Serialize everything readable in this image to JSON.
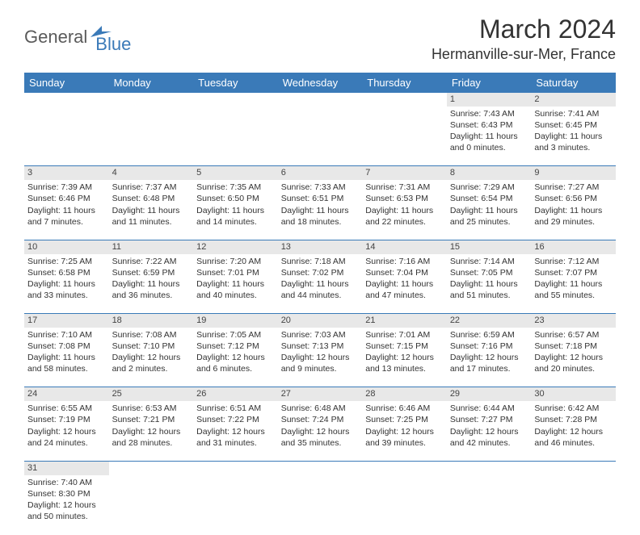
{
  "logo": {
    "part1": "General",
    "part2": "Blue"
  },
  "title": "March 2024",
  "location": "Hermanville-sur-Mer, France",
  "colors": {
    "header_bg": "#3a7ab8",
    "daynum_bg": "#e8e8e8",
    "text": "#333333",
    "sep": "#3a7ab8"
  },
  "typography": {
    "title_fontsize": 32,
    "location_fontsize": 18,
    "dayheader_fontsize": 13,
    "cell_fontsize": 10.5
  },
  "day_headers": [
    "Sunday",
    "Monday",
    "Tuesday",
    "Wednesday",
    "Thursday",
    "Friday",
    "Saturday"
  ],
  "weeks": [
    [
      null,
      null,
      null,
      null,
      null,
      {
        "n": "1",
        "sr": "Sunrise: 7:43 AM",
        "ss": "Sunset: 6:43 PM",
        "d1": "Daylight: 11 hours",
        "d2": "and 0 minutes."
      },
      {
        "n": "2",
        "sr": "Sunrise: 7:41 AM",
        "ss": "Sunset: 6:45 PM",
        "d1": "Daylight: 11 hours",
        "d2": "and 3 minutes."
      }
    ],
    [
      {
        "n": "3",
        "sr": "Sunrise: 7:39 AM",
        "ss": "Sunset: 6:46 PM",
        "d1": "Daylight: 11 hours",
        "d2": "and 7 minutes."
      },
      {
        "n": "4",
        "sr": "Sunrise: 7:37 AM",
        "ss": "Sunset: 6:48 PM",
        "d1": "Daylight: 11 hours",
        "d2": "and 11 minutes."
      },
      {
        "n": "5",
        "sr": "Sunrise: 7:35 AM",
        "ss": "Sunset: 6:50 PM",
        "d1": "Daylight: 11 hours",
        "d2": "and 14 minutes."
      },
      {
        "n": "6",
        "sr": "Sunrise: 7:33 AM",
        "ss": "Sunset: 6:51 PM",
        "d1": "Daylight: 11 hours",
        "d2": "and 18 minutes."
      },
      {
        "n": "7",
        "sr": "Sunrise: 7:31 AM",
        "ss": "Sunset: 6:53 PM",
        "d1": "Daylight: 11 hours",
        "d2": "and 22 minutes."
      },
      {
        "n": "8",
        "sr": "Sunrise: 7:29 AM",
        "ss": "Sunset: 6:54 PM",
        "d1": "Daylight: 11 hours",
        "d2": "and 25 minutes."
      },
      {
        "n": "9",
        "sr": "Sunrise: 7:27 AM",
        "ss": "Sunset: 6:56 PM",
        "d1": "Daylight: 11 hours",
        "d2": "and 29 minutes."
      }
    ],
    [
      {
        "n": "10",
        "sr": "Sunrise: 7:25 AM",
        "ss": "Sunset: 6:58 PM",
        "d1": "Daylight: 11 hours",
        "d2": "and 33 minutes."
      },
      {
        "n": "11",
        "sr": "Sunrise: 7:22 AM",
        "ss": "Sunset: 6:59 PM",
        "d1": "Daylight: 11 hours",
        "d2": "and 36 minutes."
      },
      {
        "n": "12",
        "sr": "Sunrise: 7:20 AM",
        "ss": "Sunset: 7:01 PM",
        "d1": "Daylight: 11 hours",
        "d2": "and 40 minutes."
      },
      {
        "n": "13",
        "sr": "Sunrise: 7:18 AM",
        "ss": "Sunset: 7:02 PM",
        "d1": "Daylight: 11 hours",
        "d2": "and 44 minutes."
      },
      {
        "n": "14",
        "sr": "Sunrise: 7:16 AM",
        "ss": "Sunset: 7:04 PM",
        "d1": "Daylight: 11 hours",
        "d2": "and 47 minutes."
      },
      {
        "n": "15",
        "sr": "Sunrise: 7:14 AM",
        "ss": "Sunset: 7:05 PM",
        "d1": "Daylight: 11 hours",
        "d2": "and 51 minutes."
      },
      {
        "n": "16",
        "sr": "Sunrise: 7:12 AM",
        "ss": "Sunset: 7:07 PM",
        "d1": "Daylight: 11 hours",
        "d2": "and 55 minutes."
      }
    ],
    [
      {
        "n": "17",
        "sr": "Sunrise: 7:10 AM",
        "ss": "Sunset: 7:08 PM",
        "d1": "Daylight: 11 hours",
        "d2": "and 58 minutes."
      },
      {
        "n": "18",
        "sr": "Sunrise: 7:08 AM",
        "ss": "Sunset: 7:10 PM",
        "d1": "Daylight: 12 hours",
        "d2": "and 2 minutes."
      },
      {
        "n": "19",
        "sr": "Sunrise: 7:05 AM",
        "ss": "Sunset: 7:12 PM",
        "d1": "Daylight: 12 hours",
        "d2": "and 6 minutes."
      },
      {
        "n": "20",
        "sr": "Sunrise: 7:03 AM",
        "ss": "Sunset: 7:13 PM",
        "d1": "Daylight: 12 hours",
        "d2": "and 9 minutes."
      },
      {
        "n": "21",
        "sr": "Sunrise: 7:01 AM",
        "ss": "Sunset: 7:15 PM",
        "d1": "Daylight: 12 hours",
        "d2": "and 13 minutes."
      },
      {
        "n": "22",
        "sr": "Sunrise: 6:59 AM",
        "ss": "Sunset: 7:16 PM",
        "d1": "Daylight: 12 hours",
        "d2": "and 17 minutes."
      },
      {
        "n": "23",
        "sr": "Sunrise: 6:57 AM",
        "ss": "Sunset: 7:18 PM",
        "d1": "Daylight: 12 hours",
        "d2": "and 20 minutes."
      }
    ],
    [
      {
        "n": "24",
        "sr": "Sunrise: 6:55 AM",
        "ss": "Sunset: 7:19 PM",
        "d1": "Daylight: 12 hours",
        "d2": "and 24 minutes."
      },
      {
        "n": "25",
        "sr": "Sunrise: 6:53 AM",
        "ss": "Sunset: 7:21 PM",
        "d1": "Daylight: 12 hours",
        "d2": "and 28 minutes."
      },
      {
        "n": "26",
        "sr": "Sunrise: 6:51 AM",
        "ss": "Sunset: 7:22 PM",
        "d1": "Daylight: 12 hours",
        "d2": "and 31 minutes."
      },
      {
        "n": "27",
        "sr": "Sunrise: 6:48 AM",
        "ss": "Sunset: 7:24 PM",
        "d1": "Daylight: 12 hours",
        "d2": "and 35 minutes."
      },
      {
        "n": "28",
        "sr": "Sunrise: 6:46 AM",
        "ss": "Sunset: 7:25 PM",
        "d1": "Daylight: 12 hours",
        "d2": "and 39 minutes."
      },
      {
        "n": "29",
        "sr": "Sunrise: 6:44 AM",
        "ss": "Sunset: 7:27 PM",
        "d1": "Daylight: 12 hours",
        "d2": "and 42 minutes."
      },
      {
        "n": "30",
        "sr": "Sunrise: 6:42 AM",
        "ss": "Sunset: 7:28 PM",
        "d1": "Daylight: 12 hours",
        "d2": "and 46 minutes."
      }
    ],
    [
      {
        "n": "31",
        "sr": "Sunrise: 7:40 AM",
        "ss": "Sunset: 8:30 PM",
        "d1": "Daylight: 12 hours",
        "d2": "and 50 minutes."
      },
      null,
      null,
      null,
      null,
      null,
      null
    ]
  ]
}
